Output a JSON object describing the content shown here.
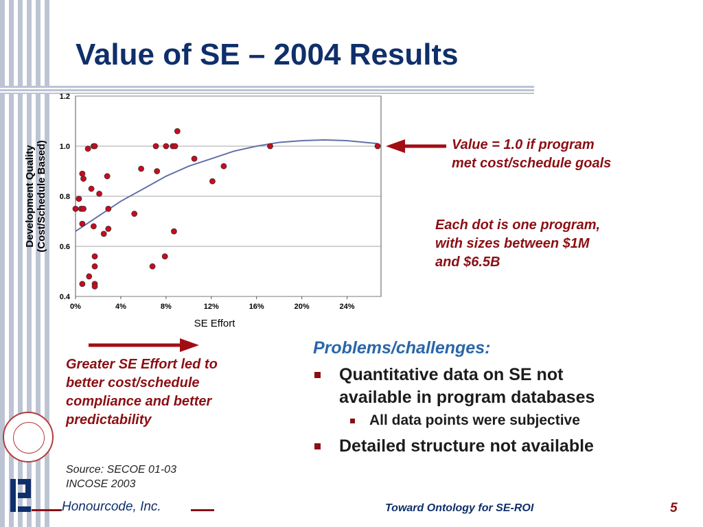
{
  "slide": {
    "title": "Value of SE – 2004 Results",
    "callout_value": [
      "Value = 1.0 if program",
      "met cost/schedule goals"
    ],
    "callout_dots": [
      "Each dot is one program,",
      "with sizes between $1M",
      "and $6.5B"
    ],
    "callout_effort": [
      "Greater SE Effort led to",
      "better cost/schedule",
      "compliance and better",
      "predictability"
    ],
    "problems_heading": "Problems/challenges:",
    "bullet1": [
      "Quantitative data on SE not",
      "available in program databases"
    ],
    "sub_bullet": "All data points were subjective",
    "bullet2": "Detailed structure not available",
    "source": [
      "Source: SECOE 01-03",
      "INCOSE 2003"
    ],
    "company": "Honourcode, Inc.",
    "footer": "Toward Ontology for SE-ROI",
    "page_number": "5"
  },
  "chart_data": {
    "type": "scatter",
    "xlabel": "SE Effort",
    "ylabel": [
      "Development Quality",
      "(Cost/Schedule Based)"
    ],
    "xlim": [
      0,
      0.27
    ],
    "ylim": [
      0.4,
      1.2
    ],
    "x_ticks": [
      "0%",
      "4%",
      "8%",
      "12%",
      "16%",
      "20%",
      "24%"
    ],
    "x_tick_values": [
      0,
      0.04,
      0.08,
      0.12,
      0.16,
      0.2,
      0.24
    ],
    "y_ticks": [
      "0.4",
      "0.6",
      "0.8",
      "1.0",
      "1.2"
    ],
    "y_tick_values": [
      0.4,
      0.6,
      0.8,
      1.0,
      1.2
    ],
    "grid": "horizontal",
    "colors": {
      "marker": "#cc0a1e",
      "trend": "#6070a8",
      "arrow": "#a00e14"
    },
    "points": [
      {
        "x": 0.0,
        "y": 0.75
      },
      {
        "x": 0.003,
        "y": 0.79
      },
      {
        "x": 0.005,
        "y": 0.75
      },
      {
        "x": 0.006,
        "y": 0.89
      },
      {
        "x": 0.006,
        "y": 0.69
      },
      {
        "x": 0.006,
        "y": 0.45
      },
      {
        "x": 0.007,
        "y": 0.75
      },
      {
        "x": 0.007,
        "y": 0.87
      },
      {
        "x": 0.011,
        "y": 0.99
      },
      {
        "x": 0.012,
        "y": 0.48
      },
      {
        "x": 0.014,
        "y": 0.83
      },
      {
        "x": 0.016,
        "y": 0.68
      },
      {
        "x": 0.016,
        "y": 1.0
      },
      {
        "x": 0.017,
        "y": 1.0
      },
      {
        "x": 0.017,
        "y": 0.45
      },
      {
        "x": 0.017,
        "y": 0.44
      },
      {
        "x": 0.017,
        "y": 0.52
      },
      {
        "x": 0.017,
        "y": 0.56
      },
      {
        "x": 0.021,
        "y": 0.81
      },
      {
        "x": 0.025,
        "y": 0.65
      },
      {
        "x": 0.028,
        "y": 0.88
      },
      {
        "x": 0.029,
        "y": 0.75
      },
      {
        "x": 0.029,
        "y": 0.67
      },
      {
        "x": 0.052,
        "y": 0.73
      },
      {
        "x": 0.058,
        "y": 0.91
      },
      {
        "x": 0.068,
        "y": 0.52
      },
      {
        "x": 0.071,
        "y": 1.0
      },
      {
        "x": 0.072,
        "y": 0.9
      },
      {
        "x": 0.079,
        "y": 0.56
      },
      {
        "x": 0.08,
        "y": 1.0
      },
      {
        "x": 0.086,
        "y": 1.0
      },
      {
        "x": 0.087,
        "y": 0.66
      },
      {
        "x": 0.088,
        "y": 1.0
      },
      {
        "x": 0.09,
        "y": 1.06
      },
      {
        "x": 0.105,
        "y": 0.95
      },
      {
        "x": 0.121,
        "y": 0.86
      },
      {
        "x": 0.131,
        "y": 0.92
      },
      {
        "x": 0.172,
        "y": 1.0
      },
      {
        "x": 0.267,
        "y": 1.0
      }
    ],
    "trendline": [
      {
        "x": 0.0,
        "y": 0.66
      },
      {
        "x": 0.02,
        "y": 0.72
      },
      {
        "x": 0.04,
        "y": 0.78
      },
      {
        "x": 0.06,
        "y": 0.83
      },
      {
        "x": 0.08,
        "y": 0.88
      },
      {
        "x": 0.1,
        "y": 0.92
      },
      {
        "x": 0.12,
        "y": 0.95
      },
      {
        "x": 0.14,
        "y": 0.98
      },
      {
        "x": 0.16,
        "y": 1.0
      },
      {
        "x": 0.18,
        "y": 1.015
      },
      {
        "x": 0.2,
        "y": 1.022
      },
      {
        "x": 0.22,
        "y": 1.025
      },
      {
        "x": 0.24,
        "y": 1.022
      },
      {
        "x": 0.267,
        "y": 1.01
      }
    ]
  }
}
